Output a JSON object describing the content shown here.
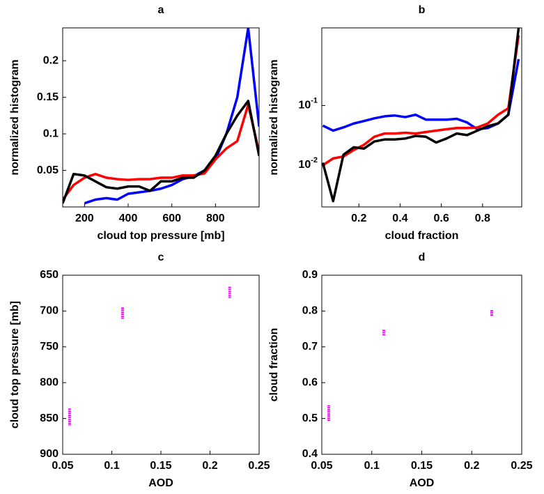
{
  "chart_data": [
    {
      "type": "line",
      "title": "a",
      "xlabel": "cloud top pressure [mb]",
      "ylabel": "normalized histogram",
      "x": [
        100,
        150,
        200,
        250,
        300,
        350,
        400,
        450,
        500,
        550,
        600,
        650,
        700,
        750,
        800,
        850,
        900,
        950,
        1000
      ],
      "series": [
        {
          "color": "#0000ff",
          "values": [
            null,
            null,
            0.005,
            0.01,
            0.012,
            0.01,
            0.018,
            0.02,
            0.022,
            0.025,
            0.03,
            0.038,
            0.042,
            0.05,
            0.065,
            0.1,
            0.15,
            0.245,
            0.11
          ]
        },
        {
          "color": "#ff0000",
          "values": [
            0.01,
            0.03,
            0.04,
            0.045,
            0.04,
            0.038,
            0.037,
            0.038,
            0.038,
            0.04,
            0.04,
            0.043,
            0.043,
            0.046,
            0.065,
            0.08,
            0.09,
            0.14,
            0.075
          ]
        },
        {
          "color": "#000000",
          "values": [
            0.005,
            0.045,
            0.043,
            0.035,
            0.027,
            0.025,
            0.028,
            0.028,
            0.022,
            0.035,
            0.035,
            0.04,
            0.04,
            0.05,
            0.07,
            0.1,
            0.125,
            0.145,
            0.07
          ]
        }
      ],
      "xlim": [
        100,
        1000
      ],
      "xticks": [
        200,
        400,
        600,
        800
      ],
      "ylim": [
        0,
        0.245
      ],
      "yticks": [
        0.05,
        0.1,
        0.15,
        0.2
      ],
      "yscale": "linear"
    },
    {
      "type": "line",
      "title": "b",
      "xlabel": "cloud fraction",
      "ylabel": "normalized histogram",
      "x": [
        0.025,
        0.075,
        0.125,
        0.175,
        0.225,
        0.275,
        0.325,
        0.375,
        0.425,
        0.475,
        0.525,
        0.575,
        0.625,
        0.675,
        0.725,
        0.775,
        0.825,
        0.875,
        0.925,
        0.975
      ],
      "series": [
        {
          "color": "#0000ff",
          "values": [
            0.046,
            0.038,
            0.043,
            0.05,
            0.055,
            0.061,
            0.066,
            0.068,
            0.064,
            0.07,
            0.058,
            0.058,
            0.058,
            0.06,
            0.052,
            0.04,
            0.042,
            0.05,
            0.07,
            0.6
          ]
        },
        {
          "color": "#ff0000",
          "values": [
            0.01,
            0.013,
            0.014,
            0.018,
            0.022,
            0.03,
            0.034,
            0.034,
            0.035,
            0.034,
            0.036,
            0.038,
            0.04,
            0.042,
            0.042,
            0.043,
            0.05,
            0.07,
            0.09,
            1.5
          ]
        },
        {
          "color": "#000000",
          "values": [
            0.011,
            0.0025,
            0.015,
            0.02,
            0.019,
            0.025,
            0.027,
            0.027,
            0.028,
            0.031,
            0.03,
            0.024,
            0.028,
            0.034,
            0.032,
            0.038,
            0.045,
            0.05,
            0.07,
            2
          ]
        }
      ],
      "xlim": [
        0.02,
        0.99
      ],
      "xticks": [
        0.2,
        0.4,
        0.6,
        0.8
      ],
      "ylim": [
        0.002,
        2
      ],
      "yticks": [
        {
          "value": 0.01,
          "label": "10-2"
        },
        {
          "value": 0.1,
          "label": "10-1"
        }
      ],
      "yscale": "log"
    },
    {
      "type": "errorbar",
      "title": "c",
      "xlabel": "AOD",
      "ylabel": "cloud top pressure [mb]",
      "x": [
        0.057,
        0.111,
        0.22
      ],
      "values": [
        848,
        703,
        674
      ],
      "errors": [
        12,
        8,
        8
      ],
      "color": "#ff00ff",
      "xlim": [
        0.05,
        0.25
      ],
      "xticks": [
        0.05,
        0.1,
        0.15,
        0.2,
        0.25
      ],
      "ylim": [
        900,
        650
      ],
      "yticks": [
        650,
        700,
        750,
        800,
        850,
        900
      ],
      "yscale": "linear"
    },
    {
      "type": "errorbar",
      "title": "d",
      "xlabel": "AOD",
      "ylabel": "cloud fraction",
      "x": [
        0.057,
        0.112,
        0.22
      ],
      "values": [
        0.515,
        0.74,
        0.795
      ],
      "errors": [
        0.022,
        0.008,
        0.008
      ],
      "color": "#ff00ff",
      "xlim": [
        0.05,
        0.25
      ],
      "xticks": [
        0.05,
        0.1,
        0.15,
        0.2,
        0.25
      ],
      "ylim": [
        0.4,
        0.9
      ],
      "yticks": [
        0.4,
        0.5,
        0.6,
        0.7,
        0.8,
        0.9
      ],
      "yscale": "linear"
    }
  ]
}
